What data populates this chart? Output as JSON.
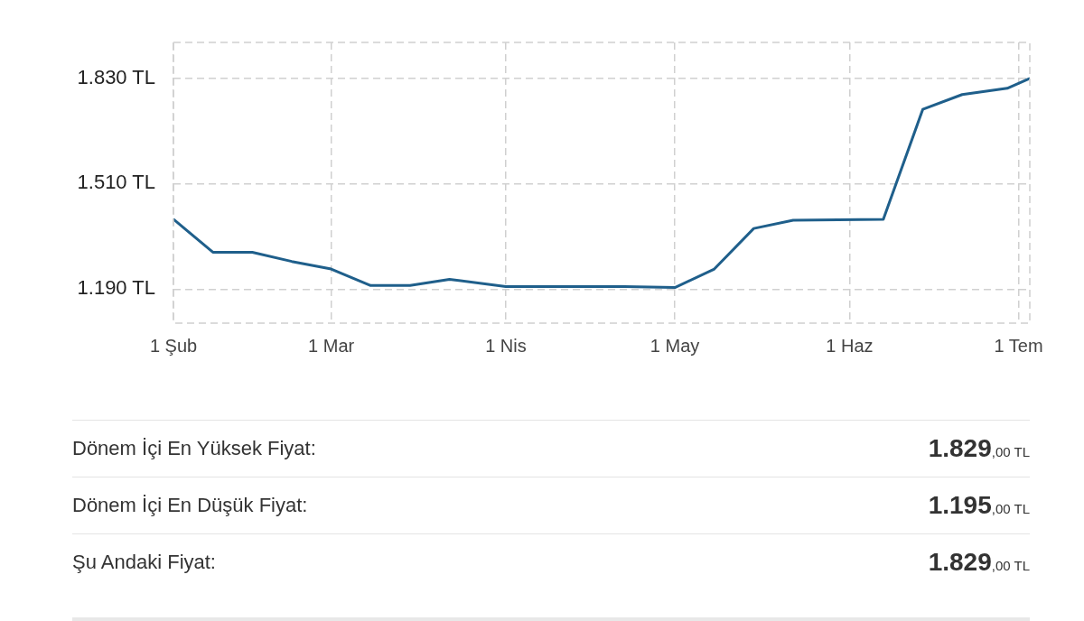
{
  "chart_data": {
    "type": "line",
    "x": [
      "--02-01",
      "--02-08",
      "--02-15",
      "--02-22",
      "--03-01",
      "--03-08",
      "--03-15",
      "--03-22",
      "--04-01",
      "--04-22",
      "--05-01",
      "--05-08",
      "--05-15",
      "--05-22",
      "--06-07",
      "--06-14",
      "--06-21",
      "--06-29",
      "--07-03"
    ],
    "series": [
      {
        "color": "#1f5f8b",
        "values": [
          1402,
          1302,
          1302,
          1274,
          1251,
          1201,
          1201,
          1220,
          1198,
          1198,
          1195,
          1251,
          1374,
          1399,
          1402,
          1735,
          1780,
          1799,
          1829
        ]
      }
    ],
    "xlim": [
      "--02-01",
      "--07-03"
    ],
    "xticks": [
      {
        "value": "--02-01",
        "label": "1 Şub"
      },
      {
        "value": "--03-01",
        "label": "1 Mar"
      },
      {
        "value": "--04-01",
        "label": "1 Nis"
      },
      {
        "value": "--05-01",
        "label": "1 May"
      },
      {
        "value": "--06-01",
        "label": "1 Haz"
      },
      {
        "value": "--07-01",
        "label": "1 Tem"
      }
    ],
    "ylim": [
      1087,
      1938
    ],
    "yticks": [
      {
        "value": 1190,
        "label": "1.190 TL"
      },
      {
        "value": 1510,
        "label": "1.510 TL"
      },
      {
        "value": 1830,
        "label": "1.830 TL"
      }
    ],
    "grid": true,
    "legend": false,
    "marker": "none",
    "line_style": "solid",
    "annotations": [
      "Dönem İçi En Yüksek Fiyat:",
      "1.829,00 TL",
      "Dönem İçi En Düşük Fiyat:",
      "1.195,00 TL",
      "Şu Andaki Fiyat:",
      "1.829,00 TL"
    ]
  }
}
